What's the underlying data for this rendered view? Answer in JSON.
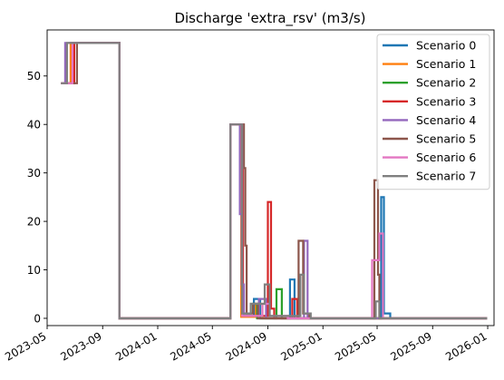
{
  "chart_data": {
    "type": "line",
    "title": "Discharge 'extra_rsv' (m3/s)",
    "xlabel": "",
    "ylabel": "",
    "x_range": [
      "2023-05-01",
      "2026-01-15"
    ],
    "ylim": [
      -1.5,
      59.5
    ],
    "x_ticks": [
      "2023-05",
      "2023-09",
      "2024-01",
      "2024-05",
      "2024-09",
      "2025-01",
      "2025-05",
      "2025-09",
      "2026-01"
    ],
    "y_ticks": [
      0,
      10,
      20,
      30,
      40,
      50
    ],
    "legend": {
      "placement": "top-right"
    },
    "grid": false,
    "series": [
      {
        "name": "Scenario 0",
        "color": "#1f77b4",
        "points": [
          [
            "2023-06-01",
            48.5
          ],
          [
            "2023-06-24",
            48.5
          ],
          [
            "2023-06-24",
            56.8
          ],
          [
            "2023-10-08",
            56.8
          ],
          [
            "2023-10-08",
            0
          ],
          [
            "2024-06-10",
            0
          ],
          [
            "2024-06-10",
            40
          ],
          [
            "2024-07-05",
            40
          ],
          [
            "2024-07-05",
            0.5
          ],
          [
            "2024-08-01",
            0.5
          ],
          [
            "2024-08-01",
            4
          ],
          [
            "2024-08-15",
            4
          ],
          [
            "2024-08-15",
            0
          ],
          [
            "2024-10-20",
            0
          ],
          [
            "2024-10-20",
            8
          ],
          [
            "2024-10-30",
            8
          ],
          [
            "2024-10-30",
            0
          ],
          [
            "2025-05-10",
            0
          ],
          [
            "2025-05-10",
            25
          ],
          [
            "2025-05-16",
            25
          ],
          [
            "2025-05-16",
            1
          ],
          [
            "2025-05-30",
            1
          ],
          [
            "2025-05-30",
            0
          ],
          [
            "2025-12-31",
            0
          ]
        ]
      },
      {
        "name": "Scenario 1",
        "color": "#ff7f0e",
        "points": [
          [
            "2023-06-01",
            48.5
          ],
          [
            "2023-06-22",
            48.5
          ],
          [
            "2023-06-22",
            56.8
          ],
          [
            "2023-10-08",
            56.8
          ],
          [
            "2023-10-08",
            0
          ],
          [
            "2024-06-10",
            0
          ],
          [
            "2024-06-10",
            40
          ],
          [
            "2024-07-04",
            40
          ],
          [
            "2024-07-04",
            0.3
          ],
          [
            "2024-08-05",
            0.3
          ],
          [
            "2024-08-05",
            3
          ],
          [
            "2024-08-20",
            3
          ],
          [
            "2024-08-20",
            0
          ],
          [
            "2025-12-31",
            0
          ]
        ]
      },
      {
        "name": "Scenario 2",
        "color": "#2ca02c",
        "points": [
          [
            "2023-06-01",
            48.5
          ],
          [
            "2023-06-28",
            48.5
          ],
          [
            "2023-06-28",
            56.8
          ],
          [
            "2023-10-08",
            56.8
          ],
          [
            "2023-10-08",
            0
          ],
          [
            "2024-06-10",
            0
          ],
          [
            "2024-06-10",
            40
          ],
          [
            "2024-07-06",
            40
          ],
          [
            "2024-07-06",
            1
          ],
          [
            "2024-07-25",
            1
          ],
          [
            "2024-07-25",
            3
          ],
          [
            "2024-08-08",
            3
          ],
          [
            "2024-08-08",
            0
          ],
          [
            "2024-09-20",
            0
          ],
          [
            "2024-09-20",
            6
          ],
          [
            "2024-10-02",
            6
          ],
          [
            "2024-10-02",
            0
          ],
          [
            "2025-12-31",
            0
          ]
        ]
      },
      {
        "name": "Scenario 3",
        "color": "#d62728",
        "points": [
          [
            "2023-06-01",
            48.5
          ],
          [
            "2023-06-30",
            48.5
          ],
          [
            "2023-06-30",
            56.8
          ],
          [
            "2023-10-08",
            56.8
          ],
          [
            "2023-10-08",
            0
          ],
          [
            "2024-06-10",
            0
          ],
          [
            "2024-06-10",
            40
          ],
          [
            "2024-07-08",
            40
          ],
          [
            "2024-07-08",
            0.5
          ],
          [
            "2024-09-01",
            0.5
          ],
          [
            "2024-09-01",
            24
          ],
          [
            "2024-09-08",
            24
          ],
          [
            "2024-09-08",
            2
          ],
          [
            "2024-09-15",
            2
          ],
          [
            "2024-09-15",
            0
          ],
          [
            "2024-10-25",
            0
          ],
          [
            "2024-10-25",
            4
          ],
          [
            "2024-11-05",
            4
          ],
          [
            "2024-11-05",
            0
          ],
          [
            "2025-12-31",
            0
          ]
        ]
      },
      {
        "name": "Scenario 4",
        "color": "#9467bd",
        "points": [
          [
            "2023-06-01",
            48.5
          ],
          [
            "2023-06-10",
            48.5
          ],
          [
            "2023-06-10",
            56.8
          ],
          [
            "2023-10-08",
            56.8
          ],
          [
            "2023-10-08",
            0
          ],
          [
            "2024-06-10",
            0
          ],
          [
            "2024-06-10",
            40
          ],
          [
            "2024-07-01",
            40
          ],
          [
            "2024-07-01",
            21.5
          ],
          [
            "2024-07-05",
            21.5
          ],
          [
            "2024-07-05",
            7
          ],
          [
            "2024-07-10",
            7
          ],
          [
            "2024-07-10",
            0.5
          ],
          [
            "2024-08-12",
            0.5
          ],
          [
            "2024-08-12",
            4
          ],
          [
            "2024-08-28",
            4
          ],
          [
            "2024-08-28",
            0
          ],
          [
            "2024-11-20",
            0
          ],
          [
            "2024-11-20",
            16
          ],
          [
            "2024-11-28",
            16
          ],
          [
            "2024-11-28",
            0
          ],
          [
            "2025-12-31",
            0
          ]
        ]
      },
      {
        "name": "Scenario 5",
        "color": "#8c564b",
        "points": [
          [
            "2023-06-01",
            48.5
          ],
          [
            "2023-07-06",
            48.5
          ],
          [
            "2023-07-06",
            56.8
          ],
          [
            "2023-10-08",
            56.8
          ],
          [
            "2023-10-08",
            0
          ],
          [
            "2024-06-10",
            0
          ],
          [
            "2024-06-10",
            40
          ],
          [
            "2024-07-10",
            40
          ],
          [
            "2024-07-10",
            31
          ],
          [
            "2024-07-13",
            31
          ],
          [
            "2024-07-13",
            15
          ],
          [
            "2024-07-16",
            15
          ],
          [
            "2024-07-16",
            1
          ],
          [
            "2024-07-30",
            1
          ],
          [
            "2024-07-30",
            3
          ],
          [
            "2024-08-10",
            3
          ],
          [
            "2024-08-10",
            0
          ],
          [
            "2024-11-08",
            0
          ],
          [
            "2024-11-08",
            16
          ],
          [
            "2024-11-18",
            16
          ],
          [
            "2024-11-18",
            1
          ],
          [
            "2024-12-02",
            1
          ],
          [
            "2024-12-02",
            0
          ],
          [
            "2025-04-25",
            0
          ],
          [
            "2025-04-25",
            28.5
          ],
          [
            "2025-05-03",
            28.5
          ],
          [
            "2025-05-03",
            9
          ],
          [
            "2025-05-06",
            9
          ],
          [
            "2025-05-06",
            0
          ],
          [
            "2025-12-31",
            0
          ]
        ]
      },
      {
        "name": "Scenario 6",
        "color": "#e377c2",
        "points": [
          [
            "2023-06-01",
            48.5
          ],
          [
            "2023-06-26",
            48.5
          ],
          [
            "2023-06-26",
            56.8
          ],
          [
            "2023-10-08",
            56.8
          ],
          [
            "2023-10-08",
            0
          ],
          [
            "2024-06-10",
            0
          ],
          [
            "2024-06-10",
            40
          ],
          [
            "2024-07-06",
            40
          ],
          [
            "2024-07-06",
            0.5
          ],
          [
            "2024-08-20",
            0.5
          ],
          [
            "2024-08-20",
            3
          ],
          [
            "2024-09-05",
            3
          ],
          [
            "2024-09-05",
            0.5
          ],
          [
            "2024-10-15",
            0.5
          ],
          [
            "2024-10-15",
            0
          ],
          [
            "2025-04-20",
            0
          ],
          [
            "2025-04-20",
            12
          ],
          [
            "2025-05-06",
            12
          ],
          [
            "2025-05-06",
            17.5
          ],
          [
            "2025-05-14",
            17.5
          ],
          [
            "2025-05-14",
            0
          ],
          [
            "2025-12-31",
            0
          ]
        ]
      },
      {
        "name": "Scenario 7",
        "color": "#7f7f7f",
        "points": [
          [
            "2023-06-01",
            48.5
          ],
          [
            "2023-06-14",
            48.5
          ],
          [
            "2023-06-14",
            56.8
          ],
          [
            "2023-10-08",
            56.8
          ],
          [
            "2023-10-08",
            0
          ],
          [
            "2024-06-10",
            0
          ],
          [
            "2024-06-10",
            40
          ],
          [
            "2024-07-06",
            40
          ],
          [
            "2024-07-06",
            1
          ],
          [
            "2024-07-25",
            1
          ],
          [
            "2024-07-25",
            3
          ],
          [
            "2024-08-25",
            3
          ],
          [
            "2024-08-25",
            7
          ],
          [
            "2024-09-05",
            7
          ],
          [
            "2024-09-05",
            0.5
          ],
          [
            "2024-11-12",
            0.5
          ],
          [
            "2024-11-12",
            9
          ],
          [
            "2024-11-20",
            9
          ],
          [
            "2024-11-20",
            1
          ],
          [
            "2024-12-05",
            1
          ],
          [
            "2024-12-05",
            0
          ],
          [
            "2025-04-28",
            0
          ],
          [
            "2025-04-28",
            3.5
          ],
          [
            "2025-05-06",
            3.5
          ],
          [
            "2025-05-06",
            0
          ],
          [
            "2025-12-31",
            0
          ]
        ]
      }
    ]
  }
}
